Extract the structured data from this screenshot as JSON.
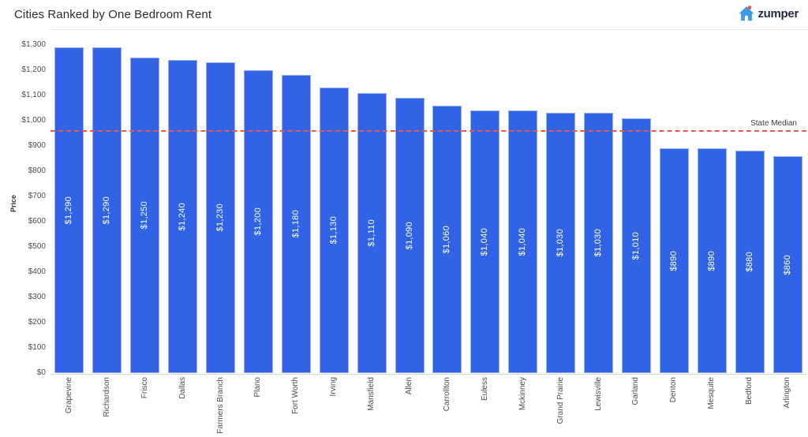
{
  "header": {
    "title": "Cities Ranked by One Bedroom Rent",
    "logo_text": "zumper"
  },
  "colors": {
    "bar": "#3164e4",
    "bar_label": "#ffffff",
    "reference_line": "#e4574e",
    "logo_house": "#3d9ae8",
    "logo_chimney": "#f4534a",
    "logo_text": "#1f2a44"
  },
  "chart_data": {
    "type": "bar",
    "title": "Cities Ranked by One Bedroom Rent",
    "categories": [
      "Grapevine",
      "Richardson",
      "Frisco",
      "Dallas",
      "Farmers Branch",
      "Plano",
      "Fort Worth",
      "Irving",
      "Mansfield",
      "Allen",
      "Carrollton",
      "Euless",
      "Mckinney",
      "Grand Prairie",
      "Lewisville",
      "Garland",
      "Denton",
      "Mesquite",
      "Bedford",
      "Arlington"
    ],
    "values": [
      1290,
      1290,
      1250,
      1240,
      1230,
      1200,
      1180,
      1130,
      1110,
      1090,
      1060,
      1040,
      1040,
      1030,
      1030,
      1010,
      890,
      890,
      880,
      860
    ],
    "bar_labels": [
      "$1,290",
      "$1,290",
      "$1,250",
      "$1,240",
      "$1,230",
      "$1,200",
      "$1,180",
      "$1,130",
      "$1,110",
      "$1,090",
      "$1,060",
      "$1,040",
      "$1,040",
      "$1,030",
      "$1,030",
      "$1,010",
      "$890",
      "$890",
      "$880",
      "$860"
    ],
    "xlabel": "",
    "ylabel": "Price",
    "ylim": [
      0,
      1300
    ],
    "ytick_step": 100,
    "ytick_prefix": "$",
    "grid": false,
    "legend": false,
    "reference_line": {
      "label": "State Median",
      "value": 960,
      "style": "dashed"
    }
  }
}
